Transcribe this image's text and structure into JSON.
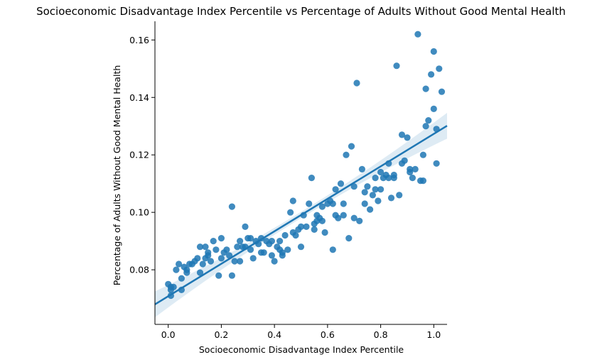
{
  "chart_data": {
    "type": "scatter",
    "title": "Socioeconomic Disadvantage Index Percentile vs Percentage of Adults Without Good Mental Health",
    "xlabel": "Socioeconomic Disadvantage Index Percentile",
    "ylabel": "Percentage of Adults Without Good Mental Health",
    "xlim": [
      -0.05,
      1.05
    ],
    "ylim": [
      0.061,
      0.1665
    ],
    "x_ticks": [
      "0.0",
      "0.2",
      "0.4",
      "0.6",
      "0.8",
      "1.0"
    ],
    "x_tick_values": [
      0.0,
      0.2,
      0.4,
      0.6,
      0.8,
      1.0
    ],
    "y_ticks": [
      "0.08",
      "0.10",
      "0.12",
      "0.14",
      "0.16"
    ],
    "y_tick_values": [
      0.08,
      0.1,
      0.12,
      0.14,
      0.16
    ],
    "grid": false,
    "point_color": "#1f77b4",
    "regression": {
      "intercept": 0.0708,
      "slope": 0.0565,
      "ci_at_ends": 0.0045,
      "ci_at_center": 0.0011,
      "x_range": [
        -0.05,
        1.05
      ]
    },
    "points": [
      [
        0.0,
        0.075
      ],
      [
        0.01,
        0.074
      ],
      [
        0.01,
        0.071
      ],
      [
        0.02,
        0.074
      ],
      [
        0.03,
        0.08
      ],
      [
        0.04,
        0.082
      ],
      [
        0.05,
        0.073
      ],
      [
        0.05,
        0.077
      ],
      [
        0.06,
        0.081
      ],
      [
        0.07,
        0.08
      ],
      [
        0.07,
        0.079
      ],
      [
        0.08,
        0.082
      ],
      [
        0.09,
        0.082
      ],
      [
        0.1,
        0.083
      ],
      [
        0.11,
        0.084
      ],
      [
        0.12,
        0.079
      ],
      [
        0.12,
        0.088
      ],
      [
        0.13,
        0.082
      ],
      [
        0.14,
        0.084
      ],
      [
        0.14,
        0.088
      ],
      [
        0.15,
        0.085
      ],
      [
        0.16,
        0.083
      ],
      [
        0.17,
        0.09
      ],
      [
        0.18,
        0.087
      ],
      [
        0.19,
        0.078
      ],
      [
        0.2,
        0.084
      ],
      [
        0.2,
        0.091
      ],
      [
        0.21,
        0.086
      ],
      [
        0.22,
        0.087
      ],
      [
        0.23,
        0.085
      ],
      [
        0.24,
        0.078
      ],
      [
        0.24,
        0.102
      ],
      [
        0.25,
        0.083
      ],
      [
        0.26,
        0.088
      ],
      [
        0.27,
        0.09
      ],
      [
        0.27,
        0.083
      ],
      [
        0.29,
        0.088
      ],
      [
        0.29,
        0.095
      ],
      [
        0.3,
        0.091
      ],
      [
        0.31,
        0.087
      ],
      [
        0.31,
        0.091
      ],
      [
        0.32,
        0.084
      ],
      [
        0.33,
        0.09
      ],
      [
        0.34,
        0.089
      ],
      [
        0.35,
        0.086
      ],
      [
        0.36,
        0.086
      ],
      [
        0.37,
        0.09
      ],
      [
        0.38,
        0.089
      ],
      [
        0.39,
        0.085
      ],
      [
        0.39,
        0.09
      ],
      [
        0.4,
        0.083
      ],
      [
        0.41,
        0.088
      ],
      [
        0.42,
        0.09
      ],
      [
        0.43,
        0.085
      ],
      [
        0.43,
        0.086
      ],
      [
        0.44,
        0.092
      ],
      [
        0.45,
        0.087
      ],
      [
        0.46,
        0.1
      ],
      [
        0.47,
        0.104
      ],
      [
        0.47,
        0.093
      ],
      [
        0.48,
        0.092
      ],
      [
        0.49,
        0.094
      ],
      [
        0.5,
        0.088
      ],
      [
        0.5,
        0.095
      ],
      [
        0.51,
        0.099
      ],
      [
        0.52,
        0.095
      ],
      [
        0.53,
        0.103
      ],
      [
        0.54,
        0.112
      ],
      [
        0.55,
        0.096
      ],
      [
        0.56,
        0.097
      ],
      [
        0.56,
        0.099
      ],
      [
        0.57,
        0.098
      ],
      [
        0.58,
        0.097
      ],
      [
        0.58,
        0.102
      ],
      [
        0.59,
        0.093
      ],
      [
        0.6,
        0.103
      ],
      [
        0.61,
        0.104
      ],
      [
        0.62,
        0.087
      ],
      [
        0.62,
        0.103
      ],
      [
        0.63,
        0.108
      ],
      [
        0.64,
        0.098
      ],
      [
        0.65,
        0.11
      ],
      [
        0.66,
        0.099
      ],
      [
        0.66,
        0.103
      ],
      [
        0.67,
        0.12
      ],
      [
        0.68,
        0.091
      ],
      [
        0.69,
        0.123
      ],
      [
        0.7,
        0.098
      ],
      [
        0.7,
        0.109
      ],
      [
        0.71,
        0.145
      ],
      [
        0.72,
        0.097
      ],
      [
        0.73,
        0.115
      ],
      [
        0.74,
        0.103
      ],
      [
        0.75,
        0.109
      ],
      [
        0.76,
        0.101
      ],
      [
        0.77,
        0.106
      ],
      [
        0.78,
        0.112
      ],
      [
        0.78,
        0.108
      ],
      [
        0.79,
        0.104
      ],
      [
        0.8,
        0.114
      ],
      [
        0.81,
        0.112
      ],
      [
        0.82,
        0.113
      ],
      [
        0.83,
        0.117
      ],
      [
        0.83,
        0.112
      ],
      [
        0.84,
        0.105
      ],
      [
        0.85,
        0.112
      ],
      [
        0.85,
        0.113
      ],
      [
        0.86,
        0.151
      ],
      [
        0.87,
        0.106
      ],
      [
        0.88,
        0.117
      ],
      [
        0.88,
        0.127
      ],
      [
        0.89,
        0.118
      ],
      [
        0.9,
        0.126
      ],
      [
        0.91,
        0.114
      ],
      [
        0.91,
        0.115
      ],
      [
        0.92,
        0.112
      ],
      [
        0.93,
        0.115
      ],
      [
        0.94,
        0.162
      ],
      [
        0.95,
        0.111
      ],
      [
        0.96,
        0.111
      ],
      [
        0.97,
        0.143
      ],
      [
        0.97,
        0.13
      ],
      [
        0.98,
        0.132
      ],
      [
        0.99,
        0.148
      ],
      [
        1.0,
        0.156
      ],
      [
        1.0,
        0.136
      ],
      [
        1.01,
        0.117
      ],
      [
        1.01,
        0.129
      ],
      [
        1.02,
        0.15
      ],
      [
        1.03,
        0.142
      ],
      [
        0.01,
        0.073
      ],
      [
        0.15,
        0.086
      ],
      [
        0.28,
        0.088
      ],
      [
        0.42,
        0.087
      ],
      [
        0.63,
        0.099
      ],
      [
        0.8,
        0.108
      ],
      [
        0.96,
        0.12
      ],
      [
        0.35,
        0.091
      ],
      [
        0.55,
        0.094
      ],
      [
        0.74,
        0.107
      ]
    ]
  }
}
